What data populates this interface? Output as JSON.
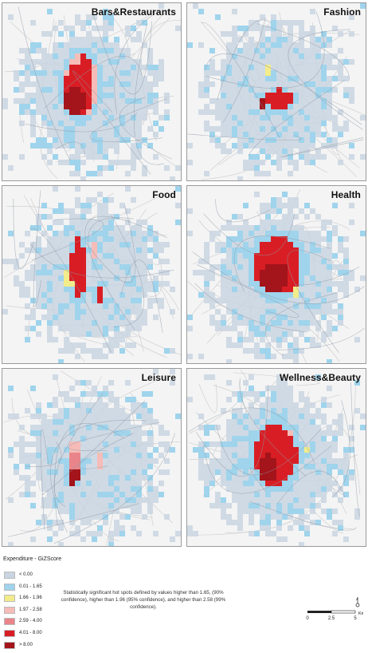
{
  "panels": [
    {
      "title": "Bars&Restaurants"
    },
    {
      "title": "Fashion"
    },
    {
      "title": "Food"
    },
    {
      "title": "Health"
    },
    {
      "title": "Leisure"
    },
    {
      "title": "Wellness&Beauty"
    }
  ],
  "legend": {
    "title": "Expenditure - GiZScore",
    "items": [
      {
        "label": "< 0.00",
        "color": "#c9d5e2"
      },
      {
        "label": "0.01 - 1.65",
        "color": "#9fd4ec"
      },
      {
        "label": "1.66 - 1.96",
        "color": "#f3ec8a"
      },
      {
        "label": "1.97 - 2.58",
        "color": "#f6bcb8"
      },
      {
        "label": "2.59 - 4.00",
        "color": "#e9858a"
      },
      {
        "label": "4.01 - 8.00",
        "color": "#d81e24"
      },
      {
        "label": "> 8.00",
        "color": "#a3141b"
      }
    ]
  },
  "note": "Statistically significant hot spots defined by values higher than 1.65, (90% confidence), higher than 1.96 (95% confidence), and higher than 2.58 (99% confidence).",
  "scale": {
    "ticks": [
      "0",
      "2.5",
      "5"
    ],
    "unit": "Km"
  }
}
